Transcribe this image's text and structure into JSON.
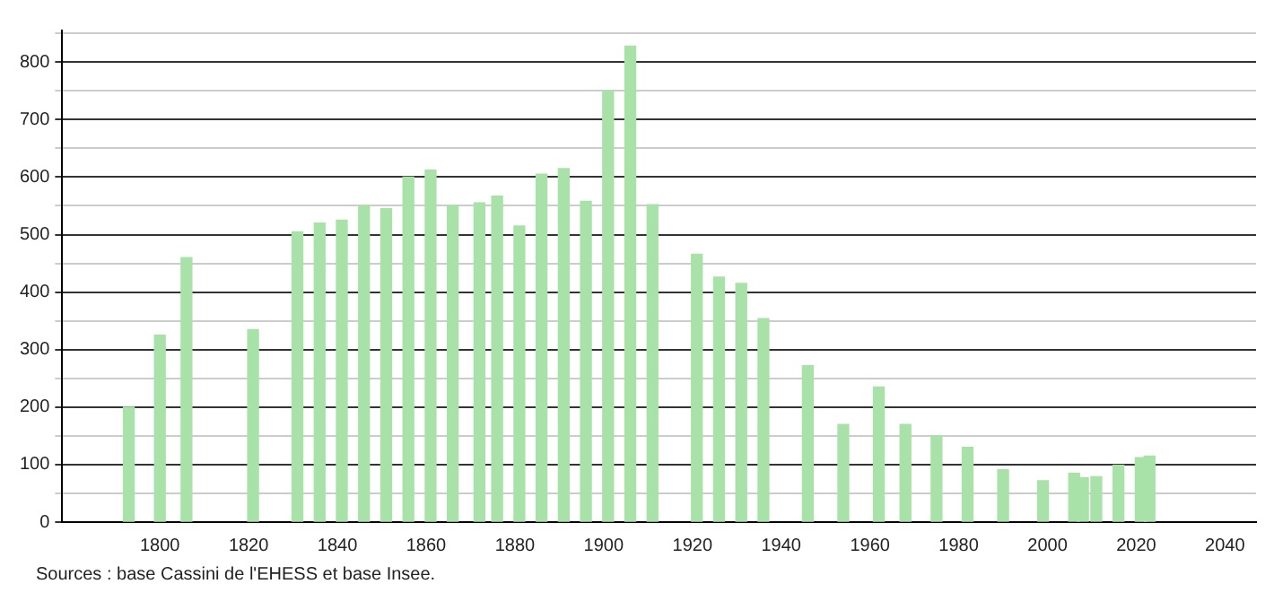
{
  "chart_data": {
    "type": "bar",
    "x": [
      1793,
      1800,
      1806,
      1821,
      1831,
      1836,
      1841,
      1846,
      1851,
      1856,
      1861,
      1866,
      1872,
      1876,
      1881,
      1886,
      1891,
      1896,
      1901,
      1906,
      1911,
      1921,
      1926,
      1931,
      1936,
      1946,
      1954,
      1962,
      1968,
      1975,
      1982,
      1990,
      1999,
      2006,
      2008,
      2011,
      2016,
      2021,
      2023
    ],
    "values": [
      200,
      325,
      460,
      335,
      505,
      520,
      525,
      550,
      545,
      600,
      612,
      550,
      555,
      567,
      515,
      605,
      615,
      558,
      750,
      828,
      552,
      466,
      426,
      415,
      354,
      272,
      170,
      235,
      170,
      150,
      130,
      91,
      72,
      85,
      77,
      79,
      99,
      112,
      115
    ],
    "color": "#a8e2a8",
    "xlim": [
      1778,
      2047
    ],
    "xticks": [
      1800,
      1820,
      1840,
      1860,
      1880,
      1900,
      1920,
      1940,
      1960,
      1980,
      2000,
      2020,
      2040
    ],
    "ylim": [
      0,
      855
    ],
    "yticks": [
      0,
      {
        "value": 50,
        "label": null
      },
      100,
      {
        "value": 150,
        "label": null
      },
      200,
      {
        "value": 250,
        "label": null
      },
      300,
      {
        "value": 350,
        "label": null
      },
      400,
      {
        "value": 450,
        "label": null
      },
      500,
      {
        "value": 550,
        "label": null
      },
      600,
      {
        "value": 650,
        "label": null
      },
      700,
      {
        "value": 750,
        "label": null
      },
      800,
      {
        "value": 850,
        "label": null
      }
    ],
    "grid": "y",
    "annotations": [
      "Sources : base Cassini de l'EHESS et base Insee."
    ]
  }
}
